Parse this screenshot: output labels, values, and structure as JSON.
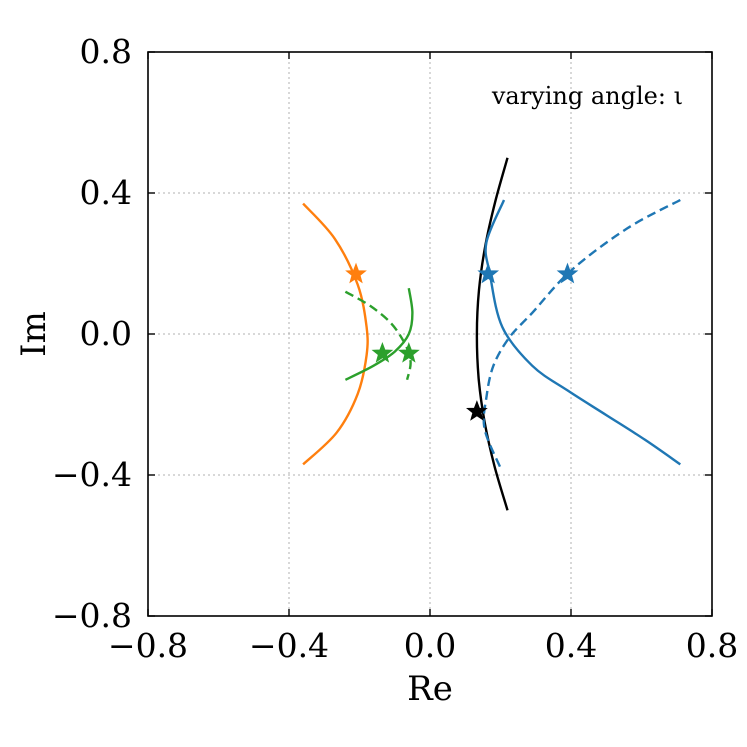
{
  "chart_data": {
    "type": "line",
    "title": "",
    "xlabel": "Re",
    "ylabel": "Im",
    "xlim": [
      -0.8,
      0.8
    ],
    "ylim": [
      -0.8,
      0.8
    ],
    "xticks": [
      -0.8,
      -0.4,
      0.0,
      0.4,
      0.8
    ],
    "yticks": [
      -0.8,
      -0.4,
      0.0,
      0.4,
      0.8
    ],
    "xtick_labels": [
      "−0.8",
      "−0.4",
      "0.0",
      "0.4",
      "0.8"
    ],
    "ytick_labels": [
      "−0.8",
      "−0.4",
      "0.0",
      "0.4",
      "0.8"
    ],
    "grid": true,
    "annotation": "varying angle: ι",
    "series": [
      {
        "color": "#000000",
        "style": "solid",
        "x": [
          0.22,
          0.185,
          0.157,
          0.139,
          0.133,
          0.138,
          0.155,
          0.183,
          0.22
        ],
        "y": [
          0.5,
          0.375,
          0.25,
          0.125,
          0.0,
          -0.125,
          -0.25,
          -0.375,
          -0.5
        ]
      },
      {
        "color": "#1f77b4",
        "style": "solid",
        "x": [
          0.21,
          0.16,
          0.17,
          0.205,
          0.29,
          0.39,
          0.5,
          0.61,
          0.71
        ],
        "y": [
          0.38,
          0.26,
          0.17,
          0.02,
          -0.09,
          -0.16,
          -0.23,
          -0.3,
          -0.37
        ]
      },
      {
        "color": "#1f77b4",
        "style": "dashed",
        "x": [
          0.71,
          0.56,
          0.4,
          0.29,
          0.225,
          0.18,
          0.16,
          0.155,
          0.2
        ],
        "y": [
          0.38,
          0.3,
          0.18,
          0.06,
          -0.01,
          -0.09,
          -0.18,
          -0.27,
          -0.38
        ]
      },
      {
        "color": "#ff7f0e",
        "style": "solid",
        "x": [
          -0.36,
          -0.27,
          -0.205,
          -0.18,
          -0.18,
          -0.205,
          -0.265,
          -0.36
        ],
        "y": [
          0.37,
          0.27,
          0.14,
          0.02,
          -0.06,
          -0.17,
          -0.28,
          -0.37
        ]
      },
      {
        "color": "#2ca02c",
        "style": "solid",
        "x": [
          -0.06,
          -0.05,
          -0.06,
          -0.1,
          -0.16,
          -0.24
        ],
        "y": [
          0.13,
          0.06,
          0.0,
          -0.05,
          -0.09,
          -0.13
        ]
      },
      {
        "color": "#2ca02c",
        "style": "dashed",
        "x": [
          -0.24,
          -0.17,
          -0.11,
          -0.07,
          -0.055,
          -0.065
        ],
        "y": [
          0.12,
          0.08,
          0.03,
          -0.03,
          -0.08,
          -0.13
        ]
      }
    ],
    "markers": [
      {
        "color": "#ff7f0e",
        "x": -0.21,
        "y": 0.17
      },
      {
        "color": "#2ca02c",
        "x": -0.135,
        "y": -0.055
      },
      {
        "color": "#2ca02c",
        "x": -0.06,
        "y": -0.055
      },
      {
        "color": "#000000",
        "x": 0.133,
        "y": -0.22
      },
      {
        "color": "#1f77b4",
        "x": 0.165,
        "y": 0.17
      },
      {
        "color": "#1f77b4",
        "x": 0.39,
        "y": 0.17
      }
    ]
  }
}
